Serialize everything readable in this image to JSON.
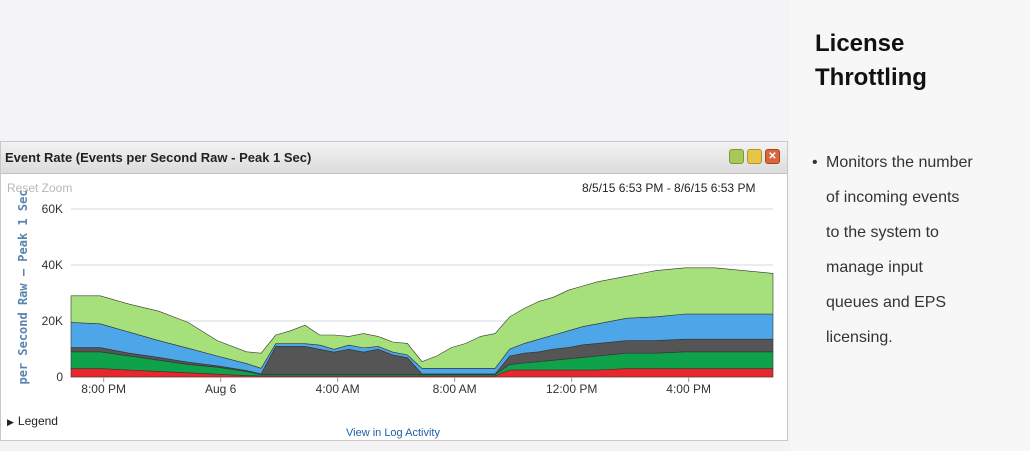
{
  "widget": {
    "title": "Event Rate (Events per Second Raw - Peak 1 Sec)",
    "reset_zoom": "Reset Zoom",
    "date_range": "8/5/15 6:53 PM - 8/6/15 6:53 PM",
    "legend_label": "Legend",
    "view_link": "View in Log Activity",
    "buttons": [
      {
        "icon": "minimize-icon",
        "color": "#a8c85a"
      },
      {
        "icon": "maximize-icon",
        "color": "#e6c64a"
      },
      {
        "icon": "close-icon",
        "color": "#d9673c",
        "glyph": "✕"
      }
    ]
  },
  "panel": {
    "title_line1": "License",
    "title_line2": "Throttling",
    "bullet_lines": [
      "Monitors the number",
      "of incoming events",
      "to the system to",
      "manage input",
      "queues and EPS",
      "licensing."
    ]
  },
  "chart_data": {
    "type": "area",
    "stacked": true,
    "ylabel": "per Second Raw – Peak 1 Sec",
    "ylim": [
      0,
      60000
    ],
    "y_ticks": [
      0,
      20000,
      40000,
      60000
    ],
    "y_tick_labels": [
      "0",
      "20K",
      "40K",
      "60K"
    ],
    "x_ticks": [
      "8:00 PM",
      "Aug 6",
      "4:00 AM",
      "8:00 AM",
      "12:00 PM",
      "4:00 PM"
    ],
    "x_tick_hours": [
      1.1167,
      5.1167,
      9.1167,
      13.1167,
      17.1167,
      21.1167
    ],
    "x_range_hours": [
      0,
      24
    ],
    "x": [
      0.0,
      1.0,
      2.0,
      3.0,
      4.0,
      5.0,
      6.0,
      6.5,
      7.0,
      7.5,
      8.0,
      8.5,
      9.0,
      9.5,
      10.0,
      10.5,
      11.0,
      11.5,
      12.0,
      12.5,
      13.0,
      13.5,
      14.0,
      14.5,
      15.0,
      15.5,
      16.0,
      16.5,
      17.0,
      17.5,
      18.0,
      19.0,
      20.0,
      21.0,
      22.0,
      23.0,
      24.0
    ],
    "series": [
      {
        "color": "#e8262b",
        "values": [
          3000,
          3000,
          2500,
          2000,
          1500,
          1000,
          500,
          400,
          400,
          400,
          400,
          400,
          400,
          400,
          400,
          400,
          400,
          400,
          400,
          400,
          400,
          400,
          400,
          400,
          2500,
          2500,
          2500,
          2500,
          2500,
          2500,
          2500,
          3000,
          3000,
          3000,
          3000,
          3000,
          3000
        ]
      },
      {
        "color": "#0ea24b",
        "values": [
          6000,
          6000,
          5000,
          4000,
          3000,
          2500,
          1500,
          500,
          500,
          500,
          500,
          500,
          500,
          500,
          500,
          500,
          500,
          500,
          500,
          500,
          500,
          500,
          500,
          500,
          2000,
          2500,
          3000,
          3500,
          4000,
          4500,
          5000,
          5500,
          5500,
          6000,
          6000,
          6000,
          6000
        ]
      },
      {
        "color": "#555555",
        "values": [
          1500,
          1500,
          1000,
          1000,
          800,
          500,
          300,
          200,
          10000,
          10000,
          10000,
          9000,
          8000,
          9000,
          8000,
          9000,
          7000,
          6000,
          200,
          200,
          200,
          200,
          200,
          200,
          3000,
          3500,
          3500,
          4000,
          4000,
          4500,
          4500,
          4500,
          4500,
          4500,
          4500,
          4500,
          4500
        ]
      },
      {
        "color": "#4da6e8",
        "values": [
          9000,
          8500,
          7500,
          6000,
          5000,
          3500,
          2500,
          2000,
          1000,
          1000,
          1000,
          1500,
          1000,
          1500,
          1500,
          1000,
          1000,
          1000,
          2000,
          2000,
          2000,
          2000,
          2000,
          2000,
          2500,
          3500,
          4500,
          5000,
          6000,
          6500,
          7000,
          8000,
          8500,
          9000,
          9000,
          9000,
          9000
        ]
      },
      {
        "color": "#a6e07a",
        "values": [
          9500,
          10000,
          10000,
          10500,
          9200,
          5500,
          4200,
          5400,
          3100,
          4600,
          6600,
          3600,
          5100,
          3100,
          5100,
          3600,
          3600,
          4100,
          2400,
          4400,
          7400,
          8900,
          11400,
          12400,
          11500,
          12500,
          13500,
          13500,
          14500,
          14500,
          15000,
          15000,
          16500,
          16500,
          16500,
          15500,
          14500
        ]
      }
    ]
  }
}
